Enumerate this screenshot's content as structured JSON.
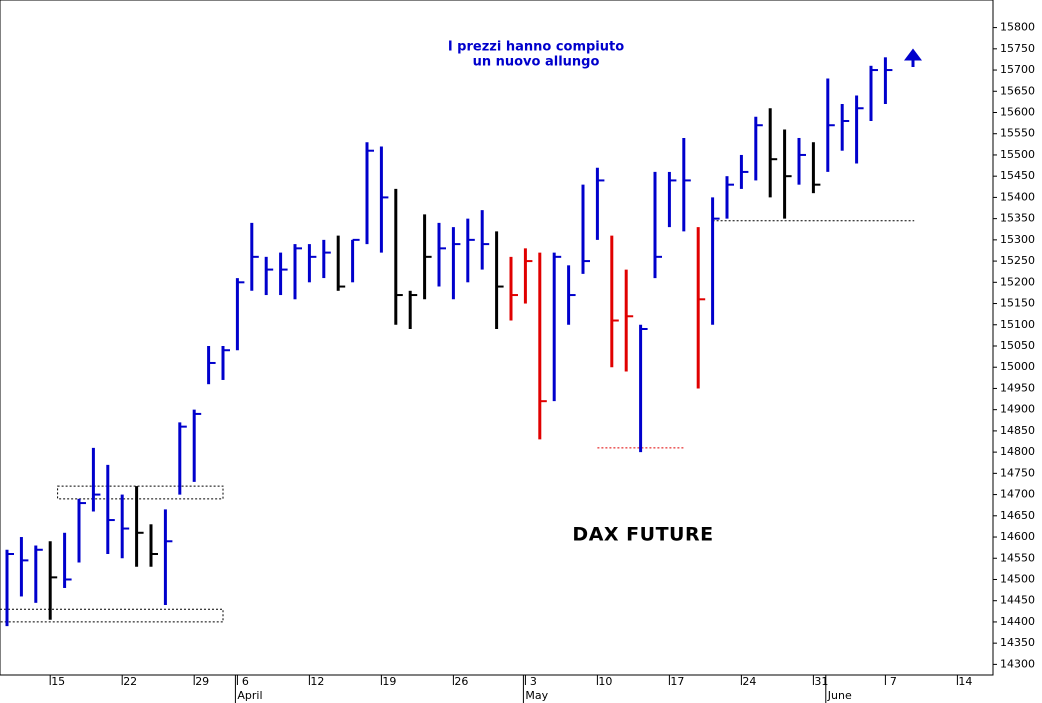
{
  "chart_data": {
    "type": "ohlc",
    "title": "DAX FUTURE",
    "annotation": [
      "I prezzi hanno compiuto",
      "un nuovo allungo"
    ],
    "categories": [
      null,
      null,
      null,
      "15",
      null,
      null,
      null,
      null,
      "22",
      null,
      null,
      null,
      null,
      "29",
      null,
      null,
      "6",
      null,
      null,
      null,
      null,
      "12",
      null,
      null,
      null,
      null,
      "19",
      null,
      null,
      null,
      null,
      "26",
      null,
      null,
      null,
      null,
      "3",
      null,
      null,
      null,
      null,
      "10",
      null,
      null,
      null,
      null,
      "17",
      null,
      null,
      null,
      null,
      "24",
      null,
      null,
      null,
      null,
      "31",
      null,
      null,
      null,
      null,
      "7",
      null,
      null,
      null,
      null,
      "14"
    ],
    "months": [
      {
        "label": "April",
        "at": 16
      },
      {
        "label": "May",
        "at": 36
      },
      {
        "label": "June",
        "at": 57
      }
    ],
    "high": [
      14570,
      14600,
      14580,
      14590,
      14610,
      14690,
      14810,
      14770,
      14700,
      14720,
      14630,
      14665,
      14870,
      14900,
      15050,
      15050,
      15210,
      15340,
      15260,
      15270,
      15290,
      15290,
      15300,
      15310,
      15300,
      15530,
      15520,
      15420,
      15180,
      15360,
      15340,
      15330,
      15350,
      15370,
      15320,
      15260,
      15280,
      15270,
      15270,
      15240,
      15430,
      15470,
      15310,
      15230,
      15100,
      15460,
      15460,
      15540,
      15330,
      15400,
      15450,
      15500,
      15590,
      15610,
      15560,
      15540,
      15530,
      15680,
      15620,
      15640,
      15710,
      15730,
      null,
      null,
      null,
      null,
      null
    ],
    "low": [
      14390,
      14460,
      14445,
      14405,
      14480,
      14540,
      14660,
      14560,
      14550,
      14530,
      14530,
      14440,
      14700,
      14730,
      14960,
      14970,
      15040,
      15180,
      15170,
      15170,
      15160,
      15200,
      15210,
      15180,
      15200,
      15290,
      15270,
      15100,
      15090,
      15160,
      15190,
      15160,
      15200,
      15230,
      15090,
      15110,
      15150,
      14830,
      14920,
      15100,
      15220,
      15300,
      15000,
      14990,
      14800,
      15210,
      15330,
      15320,
      14950,
      15100,
      15350,
      15420,
      15440,
      15400,
      15350,
      15430,
      15410,
      15460,
      15510,
      15480,
      15580,
      15620,
      null,
      null,
      null,
      null,
      null
    ],
    "close": [
      14560,
      14545,
      14570,
      14505,
      14500,
      14680,
      14700,
      14640,
      14620,
      14610,
      14560,
      14590,
      14860,
      14890,
      15010,
      15040,
      15200,
      15260,
      15230,
      15230,
      15280,
      15260,
      15270,
      15190,
      15300,
      15510,
      15400,
      15170,
      15170,
      15260,
      15280,
      15290,
      15300,
      15290,
      15190,
      15170,
      15250,
      14920,
      15260,
      15170,
      15250,
      15440,
      15110,
      15120,
      15090,
      15260,
      15440,
      15440,
      15160,
      15350,
      15430,
      15460,
      15570,
      15490,
      15450,
      15500,
      15430,
      15570,
      15580,
      15610,
      15700,
      15700,
      null,
      null,
      null,
      null,
      null
    ],
    "colors": [
      "#0000cc",
      "#0000cc",
      "#0000cc",
      "#000000",
      "#0000cc",
      "#0000cc",
      "#0000cc",
      "#0000cc",
      "#0000cc",
      "#000000",
      "#000000",
      "#0000cc",
      "#0000cc",
      "#0000cc",
      "#0000cc",
      "#0000cc",
      "#0000cc",
      "#0000cc",
      "#0000cc",
      "#0000cc",
      "#0000cc",
      "#0000cc",
      "#0000cc",
      "#000000",
      "#0000cc",
      "#0000cc",
      "#0000cc",
      "#000000",
      "#000000",
      "#000000",
      "#0000cc",
      "#0000cc",
      "#0000cc",
      "#0000cc",
      "#000000",
      "#e00000",
      "#e00000",
      "#e00000",
      "#0000cc",
      "#0000cc",
      "#0000cc",
      "#0000cc",
      "#e00000",
      "#e00000",
      "#0000cc",
      "#0000cc",
      "#0000cc",
      "#0000cc",
      "#e00000",
      "#0000cc",
      "#0000cc",
      "#0000cc",
      "#0000cc",
      "#000000",
      "#000000",
      "#0000cc",
      "#000000",
      "#0000cc",
      "#0000cc",
      "#0000cc",
      "#0000cc",
      "#0000cc",
      null,
      null,
      null,
      null,
      null
    ],
    "zones": [
      {
        "range": [
          14690,
          14720
        ],
        "span": [
          4,
          15
        ]
      },
      {
        "range": [
          14400,
          14430
        ],
        "span": [
          0,
          15
        ]
      }
    ],
    "levels": [
      {
        "value": 15345,
        "span": [
          49,
          63
        ],
        "color": "#000000"
      },
      {
        "value": 14810,
        "span": [
          41,
          47
        ],
        "color": "#e00000"
      }
    ],
    "ylim": [
      14275,
      15865
    ],
    "yticks": [
      14300,
      14350,
      14400,
      14450,
      14500,
      14550,
      14600,
      14650,
      14700,
      14750,
      14800,
      14850,
      14900,
      14950,
      15000,
      15050,
      15100,
      15150,
      15200,
      15250,
      15300,
      15350,
      15400,
      15450,
      15500,
      15550,
      15600,
      15650,
      15700,
      15750,
      15800
    ],
    "y_axis_side": "right",
    "grid": false
  }
}
